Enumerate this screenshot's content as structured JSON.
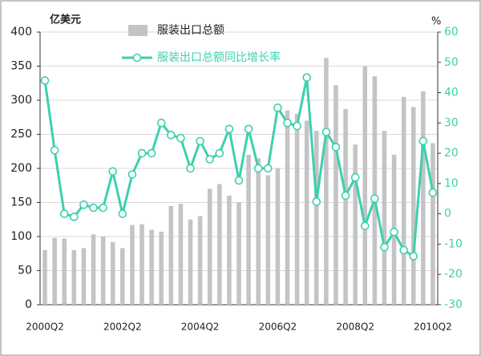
{
  "chart_data": {
    "type": "bar-line",
    "y_label": "亿美元",
    "y2_label": "%",
    "categories": [
      "2000Q2",
      null,
      null,
      null,
      null,
      null,
      null,
      null,
      "2002Q2",
      null,
      null,
      null,
      null,
      null,
      null,
      null,
      "2004Q2",
      null,
      null,
      null,
      null,
      null,
      null,
      null,
      "2006Q2",
      null,
      null,
      null,
      null,
      null,
      null,
      null,
      "2008Q2",
      null,
      null,
      null,
      null,
      null,
      null,
      null,
      "2010Q2"
    ],
    "series": [
      {
        "name": "服装出口总额",
        "type": "bar",
        "color": "#c4c4c4",
        "values": [
          80,
          98,
          97,
          80,
          83,
          103,
          100,
          92,
          83,
          117,
          118,
          110,
          107,
          145,
          148,
          125,
          130,
          170,
          177,
          160,
          150,
          220,
          215,
          190,
          200,
          285,
          280,
          270,
          255,
          362,
          322,
          287,
          235,
          350,
          335,
          255,
          220,
          305,
          290,
          313,
          237
        ]
      },
      {
        "name": "服装出口总额同比增长率",
        "type": "line",
        "axis": "y2",
        "color": "#3dd0ad",
        "values": [
          44,
          21,
          0,
          -1,
          3,
          2,
          2,
          14,
          0,
          13,
          20,
          20,
          30,
          26,
          25,
          15,
          24,
          18,
          20,
          28,
          11,
          28,
          15,
          15,
          35,
          30,
          29,
          45,
          4,
          27,
          22,
          6,
          12,
          -4,
          5,
          -11,
          -6,
          -12,
          -14,
          24,
          7
        ]
      }
    ],
    "ylim": [
      0,
      400
    ],
    "yticks": [
      0,
      50,
      100,
      150,
      200,
      250,
      300,
      350,
      400
    ],
    "y2lim": [
      -30,
      60
    ],
    "y2ticks": [
      -30,
      -20,
      -10,
      0,
      10,
      20,
      30,
      40,
      50,
      60
    ],
    "grid": true
  }
}
